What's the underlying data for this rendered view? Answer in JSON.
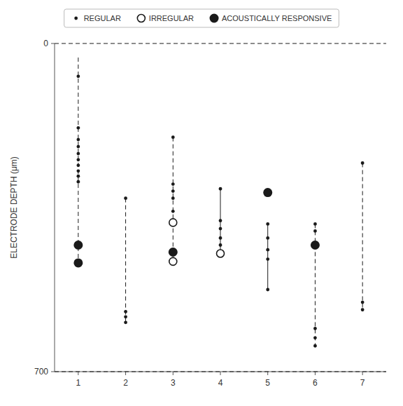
{
  "chart_data": {
    "type": "scatter",
    "y_label": "ELECTRODE DEPTH (μm)",
    "xlim": [
      0.5,
      7.5
    ],
    "ylim": [
      700,
      0
    ],
    "xticks": [
      1,
      2,
      3,
      4,
      5,
      6,
      7
    ],
    "yticks": [
      0,
      700
    ],
    "grid": false,
    "legend": "top",
    "reference_lines": [
      {
        "value": 0,
        "line_style": "dashed"
      },
      {
        "value": 700,
        "line_style": "dashed"
      }
    ],
    "columns": [
      {
        "x": 1,
        "line_style": "dashed",
        "line_top": 30,
        "line_bottom": 468
      },
      {
        "x": 2,
        "line_style": "dashed",
        "line_top": 330,
        "line_bottom": 595
      },
      {
        "x": 3,
        "line_style": "dashed",
        "line_top": 200,
        "line_bottom": 465
      },
      {
        "x": 4,
        "line_style": "solid",
        "line_top": 310,
        "line_bottom": 448
      },
      {
        "x": 5,
        "line_style": "solid",
        "line_top": 385,
        "line_bottom": 525
      },
      {
        "x": 6,
        "line_style": "dashed",
        "line_top": 385,
        "line_bottom": 645
      },
      {
        "x": 7,
        "line_style": "dashed",
        "line_top": 255,
        "line_bottom": 568
      }
    ],
    "series": [
      {
        "name": "REGULAR",
        "marker": "dot",
        "x": [
          1,
          1,
          1,
          1,
          1,
          1,
          1,
          1,
          1,
          1,
          2,
          2,
          2,
          2,
          3,
          3,
          3,
          3,
          3,
          4,
          4,
          4,
          4,
          4,
          5,
          5,
          5,
          5,
          5,
          6,
          6,
          6,
          6,
          6,
          7,
          7,
          7
        ],
        "values": [
          70,
          180,
          205,
          220,
          235,
          248,
          260,
          272,
          283,
          295,
          330,
          572,
          583,
          595,
          200,
          300,
          315,
          330,
          358,
          310,
          378,
          395,
          415,
          430,
          385,
          415,
          440,
          460,
          525,
          385,
          400,
          608,
          628,
          645,
          255,
          552,
          568
        ]
      },
      {
        "name": "IRREGULAR",
        "marker": "open-circle",
        "x": [
          3,
          3,
          4
        ],
        "values": [
          382,
          465,
          448
        ]
      },
      {
        "name": "ACOUSTICALLY RESPONSIVE",
        "marker": "filled-circle",
        "x": [
          1,
          1,
          3,
          5,
          6
        ],
        "values": [
          430,
          468,
          445,
          318,
          430
        ]
      }
    ]
  }
}
